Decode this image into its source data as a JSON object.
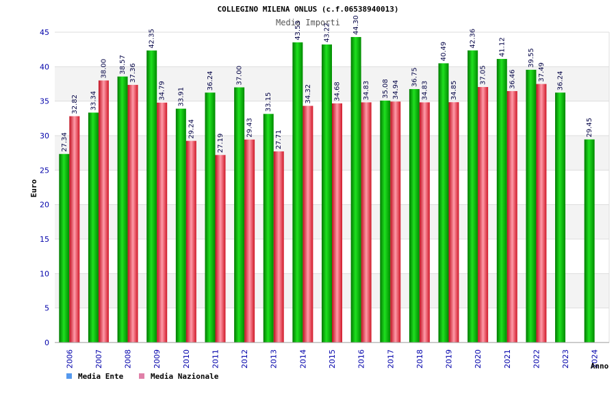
{
  "chart_data": {
    "type": "bar",
    "title": "COLLEGINO MILENA ONLUS (c.f.06538940013)",
    "subtitle": "Media Importi",
    "xlabel": "Anno",
    "ylabel": "Euro",
    "ylim": [
      0,
      45
    ],
    "yticks": [
      0,
      5,
      10,
      15,
      20,
      25,
      30,
      35,
      40,
      45
    ],
    "grid": true,
    "legend_position": "bottom-left",
    "categories": [
      "2006",
      "2007",
      "2008",
      "2009",
      "2010",
      "2011",
      "2012",
      "2013",
      "2014",
      "2015",
      "2016",
      "2017",
      "2018",
      "2019",
      "2020",
      "2021",
      "2022",
      "2023",
      "2024"
    ],
    "series": [
      {
        "name": "Media Ente",
        "color": "#00b000",
        "legend_color": "#5599ee",
        "values": [
          27.34,
          33.34,
          38.57,
          42.35,
          33.91,
          36.24,
          37.0,
          33.15,
          43.53,
          43.22,
          44.3,
          35.08,
          36.75,
          40.49,
          42.36,
          41.12,
          39.55,
          36.24,
          29.45
        ]
      },
      {
        "name": "Media Nazionale",
        "color": "#e83040",
        "legend_color": "#e080a8",
        "values": [
          32.82,
          38.0,
          37.36,
          34.79,
          29.24,
          27.19,
          29.43,
          27.71,
          34.32,
          34.68,
          34.83,
          34.94,
          34.83,
          34.85,
          37.05,
          36.46,
          37.49,
          null,
          null
        ]
      }
    ],
    "value_labels": {
      "ente": [
        "27.34",
        "33.34",
        "38.57",
        "42.35",
        "33.91",
        "36.24",
        "37.00",
        "33.15",
        "43.53",
        "43.22",
        "44.30",
        "35.08",
        "36.75",
        "40.49",
        "42.36",
        "41.12",
        "39.55",
        "36.24",
        "29.45"
      ],
      "nazionale": [
        "32.82",
        "38.00",
        "37.36",
        "34.79",
        "29.24",
        "27.19",
        "29.43",
        "27.71",
        "34.32",
        "34.68",
        "34.83",
        "34.94",
        "34.83",
        "34.85",
        "37.05",
        "36.46",
        "37.49",
        "",
        ""
      ]
    }
  }
}
